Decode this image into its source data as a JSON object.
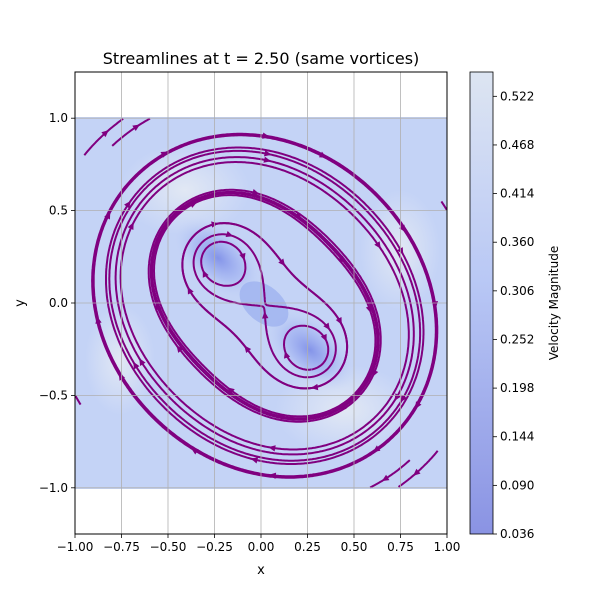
{
  "chart_data": {
    "type": "streamplot",
    "title": "Streamlines at t = 2.50 (same vortices)",
    "xlabel": "x",
    "ylabel": "y",
    "xlim": [
      -1.0,
      1.0
    ],
    "ylim": [
      -1.25,
      1.25
    ],
    "field_extent": {
      "x": [
        -1.0,
        1.0
      ],
      "y": [
        -1.0,
        1.0
      ]
    },
    "x_ticks": [
      -1.0,
      -0.75,
      -0.5,
      -0.25,
      0.0,
      0.25,
      0.5,
      0.75,
      1.0
    ],
    "x_tick_labels": [
      "−1.00",
      "−0.75",
      "−0.50",
      "−0.25",
      "0.00",
      "0.25",
      "0.50",
      "0.75",
      "1.00"
    ],
    "y_ticks": [
      -1.0,
      -0.5,
      0.0,
      0.5,
      1.0
    ],
    "y_tick_labels": [
      "−1.0",
      "−0.5",
      "0.0",
      "0.5",
      "1.0"
    ],
    "grid": true,
    "vortices": [
      {
        "x": -0.23,
        "y": 0.24,
        "rotation": "clockwise"
      },
      {
        "x": 0.27,
        "y": -0.27,
        "rotation": "clockwise"
      }
    ],
    "streamline_color": "#800080",
    "colorbar": {
      "label": "Velocity Magnitude",
      "min": 0.036,
      "max": 0.549,
      "ticks": [
        0.036,
        0.09,
        0.144,
        0.198,
        0.252,
        0.306,
        0.36,
        0.414,
        0.468,
        0.522
      ],
      "tick_labels": [
        "0.036",
        "0.090",
        "0.144",
        "0.198",
        "0.252",
        "0.306",
        "0.360",
        "0.414",
        "0.468",
        "0.522"
      ],
      "colors": [
        "#8a93e3",
        "#b9c8f5",
        "#dde5f2"
      ]
    }
  }
}
